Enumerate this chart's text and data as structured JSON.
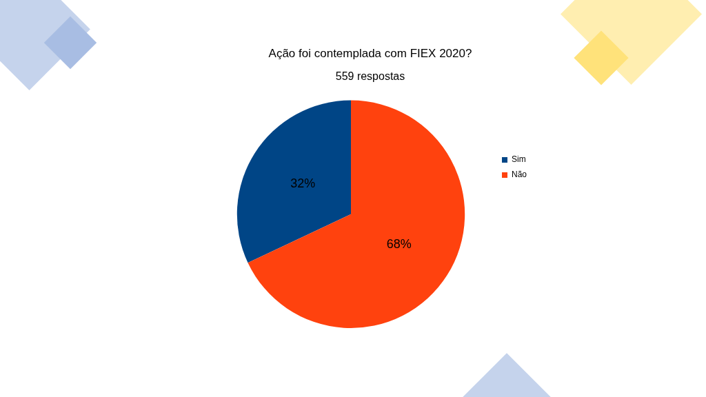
{
  "chart_data": {
    "type": "pie",
    "title": "Ação foi contemplada com FIEX 2020?",
    "subtitle": "559 respostas",
    "categories": [
      "Sim",
      "Não"
    ],
    "values": [
      32,
      68
    ],
    "colors": [
      "#004586",
      "#ff420e"
    ],
    "value_labels": [
      "32%",
      "68%"
    ],
    "legend": "right"
  }
}
